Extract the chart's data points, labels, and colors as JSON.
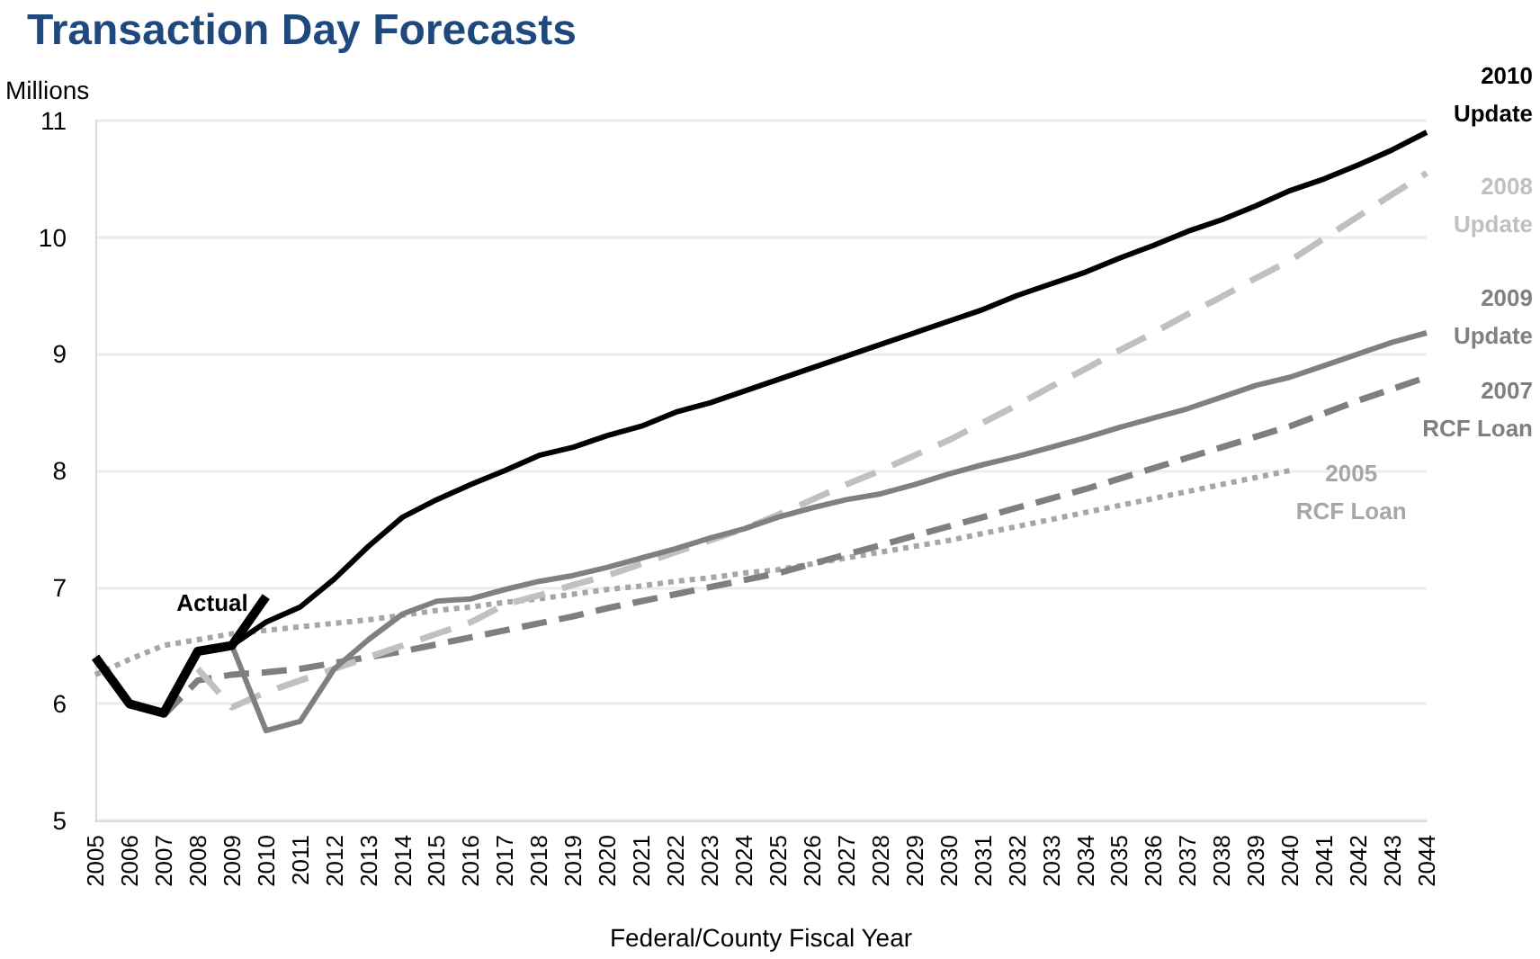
{
  "chart_data": {
    "type": "line",
    "title": "Transaction Day Forecasts",
    "xlabel": "Federal/County Fiscal Year",
    "ylabel": "Millions",
    "categories": [
      "2005",
      "2006",
      "2007",
      "2008",
      "2009",
      "2010",
      "2011",
      "2012",
      "2013",
      "2014",
      "2015",
      "2016",
      "2017",
      "2018",
      "2019",
      "2020",
      "2021",
      "2022",
      "2023",
      "2024",
      "2025",
      "2026",
      "2027",
      "2028",
      "2029",
      "2030",
      "2031",
      "2032",
      "2033",
      "2034",
      "2035",
      "2036",
      "2037",
      "2038",
      "2039",
      "2040",
      "2041",
      "2042",
      "2043",
      "2044"
    ],
    "series": [
      {
        "name": "2005 RCF Loan",
        "color": "#a6a6a6",
        "line_style": "dotted",
        "values": [
          6.25,
          6.38,
          6.5,
          6.55,
          6.6,
          6.63,
          6.66,
          6.69,
          6.72,
          6.76,
          6.8,
          6.83,
          6.87,
          6.9,
          6.94,
          6.98,
          7.01,
          7.05,
          7.08,
          7.12,
          7.15,
          7.2,
          7.25,
          7.3,
          7.35,
          7.4,
          7.46,
          7.52,
          7.58,
          7.64,
          7.7,
          7.76,
          7.82,
          7.88,
          7.94,
          8.0,
          null,
          null,
          null,
          null
        ]
      },
      {
        "name": "2007 RCF Loan",
        "color": "#7f7f7f",
        "line_style": "dashed",
        "values": [
          null,
          null,
          5.9,
          6.2,
          6.25,
          6.27,
          6.3,
          6.35,
          6.4,
          6.45,
          6.51,
          6.57,
          6.63,
          6.69,
          6.75,
          6.82,
          6.88,
          6.94,
          7.0,
          7.06,
          7.12,
          7.2,
          7.28,
          7.36,
          7.44,
          7.52,
          7.6,
          7.68,
          7.76,
          7.84,
          7.93,
          8.02,
          8.11,
          8.2,
          8.29,
          8.38,
          8.49,
          8.6,
          8.7,
          8.8
        ]
      },
      {
        "name": "2008 Update",
        "color": "#c0c0c0",
        "line_style": "dashed",
        "values": [
          null,
          null,
          null,
          6.3,
          5.97,
          6.1,
          6.2,
          6.3,
          6.4,
          6.5,
          6.6,
          6.7,
          6.85,
          6.93,
          7.02,
          7.1,
          7.2,
          7.3,
          7.4,
          7.5,
          7.62,
          7.75,
          7.88,
          8.0,
          8.13,
          8.26,
          8.41,
          8.56,
          8.72,
          8.87,
          9.03,
          9.18,
          9.34,
          9.49,
          9.65,
          9.8,
          9.99,
          10.18,
          10.37,
          10.55
        ]
      },
      {
        "name": "2009 Update",
        "color": "#808080",
        "line_style": "solid",
        "values": [
          null,
          null,
          null,
          null,
          6.5,
          5.77,
          5.85,
          6.3,
          6.55,
          6.77,
          6.88,
          6.9,
          6.98,
          7.05,
          7.1,
          7.17,
          7.25,
          7.33,
          7.42,
          7.5,
          7.6,
          7.68,
          7.75,
          7.8,
          7.88,
          7.97,
          8.05,
          8.12,
          8.2,
          8.28,
          8.37,
          8.45,
          8.53,
          8.63,
          8.73,
          8.8,
          8.9,
          9.0,
          9.1,
          9.18
        ]
      },
      {
        "name": "2010 Update",
        "color": "#000000",
        "line_style": "solid",
        "values": [
          null,
          null,
          null,
          null,
          6.5,
          6.7,
          6.83,
          7.07,
          7.35,
          7.6,
          7.75,
          7.88,
          8.0,
          8.13,
          8.2,
          8.3,
          8.38,
          8.5,
          8.58,
          8.68,
          8.78,
          8.88,
          8.98,
          9.08,
          9.18,
          9.28,
          9.38,
          9.5,
          9.6,
          9.7,
          9.82,
          9.93,
          10.05,
          10.15,
          10.27,
          10.4,
          10.5,
          10.62,
          10.75,
          10.9
        ]
      },
      {
        "name": "Actual",
        "color": "#000000",
        "line_style": "solid",
        "values": [
          6.4,
          6.0,
          5.92,
          6.45,
          6.5,
          6.92,
          null,
          null,
          null,
          null,
          null,
          null,
          null,
          null,
          null,
          null,
          null,
          null,
          null,
          null,
          null,
          null,
          null,
          null,
          null,
          null,
          null,
          null,
          null,
          null,
          null,
          null,
          null,
          null,
          null,
          null,
          null,
          null,
          null,
          null
        ]
      }
    ],
    "ylim": [
      5,
      11
    ],
    "yticks": [
      5,
      6,
      7,
      8,
      9,
      10,
      11
    ],
    "grid": "y",
    "legend": false,
    "marker": "none"
  }
}
